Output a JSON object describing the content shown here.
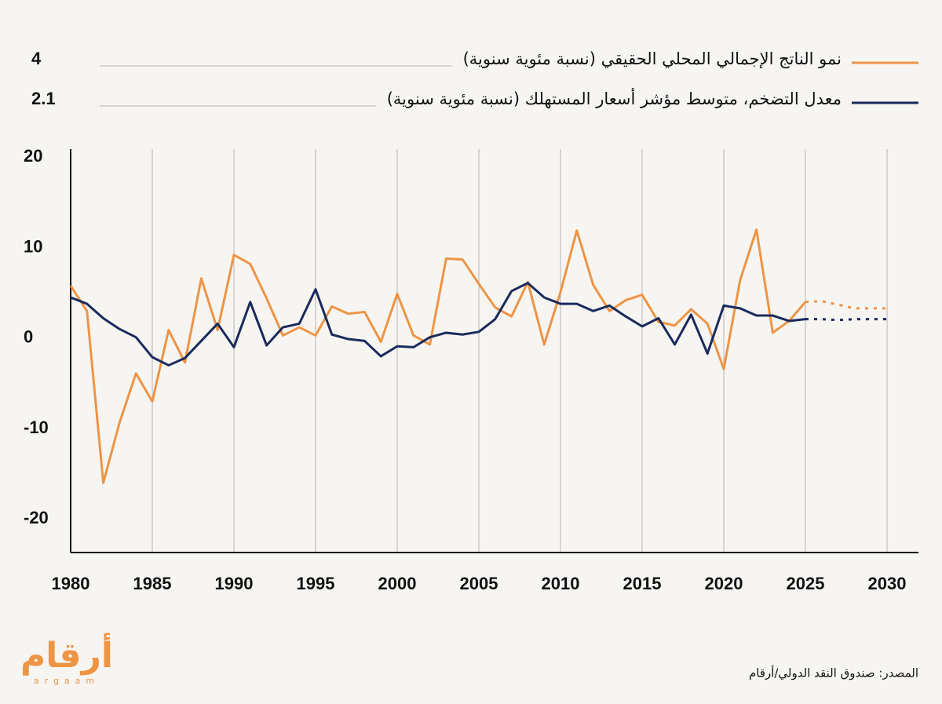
{
  "chart_data": {
    "type": "line",
    "x": [
      1980,
      1981,
      1982,
      1983,
      1984,
      1985,
      1986,
      1987,
      1988,
      1989,
      1990,
      1991,
      1992,
      1993,
      1994,
      1995,
      1996,
      1997,
      1998,
      1999,
      2000,
      2001,
      2002,
      2003,
      2004,
      2005,
      2006,
      2007,
      2008,
      2009,
      2010,
      2011,
      2012,
      2013,
      2014,
      2015,
      2016,
      2017,
      2018,
      2019,
      2020,
      2021,
      2022,
      2023,
      2024,
      2025,
      2026,
      2027,
      2028,
      2029,
      2030
    ],
    "series": [
      {
        "name": "نمو الناتج الإجمالي المحلي الحقيقي (نسبة مئوية سنوية)",
        "color": "#ee9445",
        "values": [
          5.8,
          3.0,
          -16.0,
          -9.3,
          -3.9,
          -7.0,
          0.9,
          -2.7,
          6.6,
          0.9,
          9.2,
          8.2,
          4.4,
          0.3,
          1.2,
          0.3,
          3.5,
          2.7,
          2.9,
          -0.4,
          4.9,
          0.3,
          -0.7,
          8.8,
          8.7,
          6.0,
          3.4,
          2.4,
          6.2,
          -0.7,
          5.1,
          11.9,
          5.9,
          3.0,
          4.2,
          4.8,
          1.8,
          1.4,
          3.2,
          1.6,
          -3.4,
          6.4,
          12.0,
          0.6,
          1.9,
          4,
          4.1,
          3.7,
          3.3,
          3.3,
          3.3
        ]
      },
      {
        "name": "معدل التضخم، متوسط مؤشر أسعار المستهلك (نسبة مئوية سنوية)",
        "color": "#1b2a5c",
        "values": [
          4.5,
          3.8,
          2.2,
          1.0,
          0.1,
          -2.1,
          -3.0,
          -2.2,
          -0.3,
          1.6,
          -1.0,
          4.0,
          -0.8,
          1.2,
          1.6,
          5.4,
          0.4,
          -0.1,
          -0.3,
          -2.0,
          -0.9,
          -1.0,
          0.1,
          0.6,
          0.4,
          0.7,
          2.1,
          5.2,
          6.1,
          4.5,
          3.8,
          3.8,
          3.0,
          3.6,
          2.4,
          1.3,
          2.2,
          -0.7,
          2.6,
          -1.7,
          3.6,
          3.3,
          2.5,
          2.5,
          1.9,
          2.1,
          2.1,
          2.0,
          2.1,
          2.1,
          2.1
        ]
      }
    ],
    "dashed_from": 2025,
    "xlim": [
      1980,
      2030
    ],
    "xticks": [
      1980,
      1985,
      1990,
      1995,
      2000,
      2005,
      2010,
      2015,
      2020,
      2025,
      2030
    ],
    "ylim": [
      -23.7,
      20.9
    ],
    "yticks": [
      -20,
      -10,
      0,
      10,
      20
    ],
    "grid": true,
    "source": "المصدر: صندوق النقد الدولي/أرقام",
    "logo": {
      "text": "أرقام",
      "subtext": "argaam"
    }
  }
}
